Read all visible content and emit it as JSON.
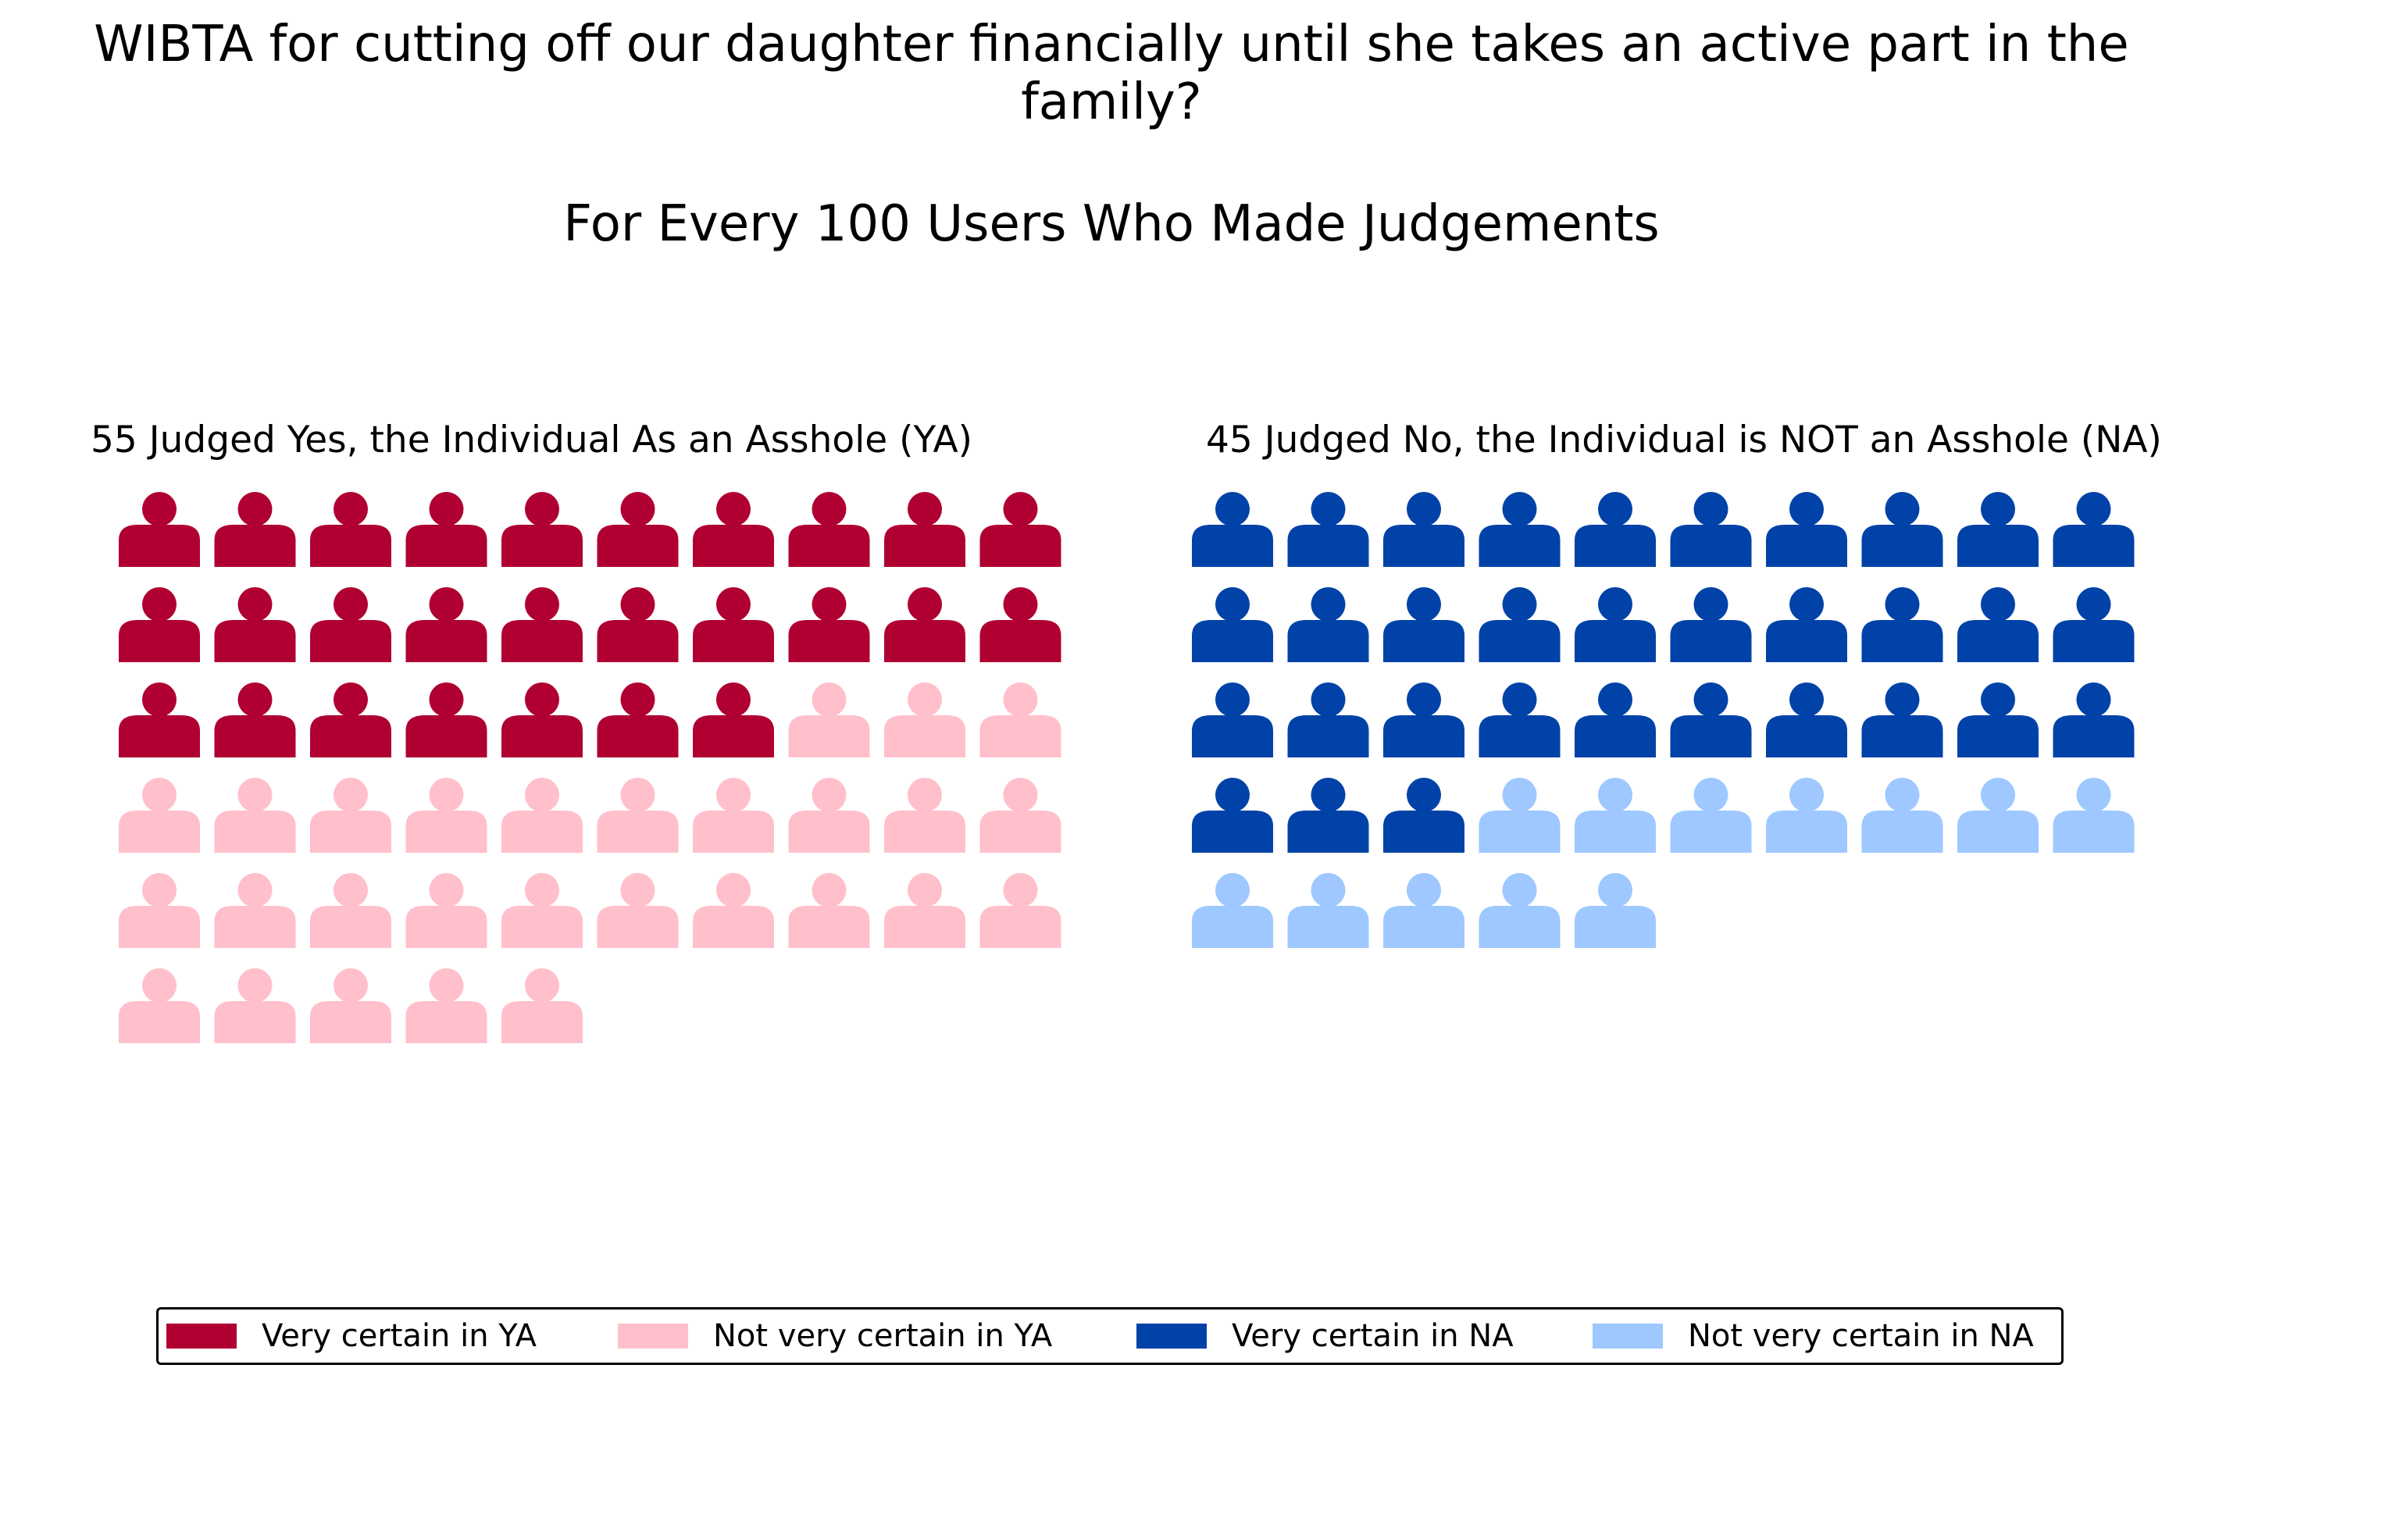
{
  "chart_data": {
    "type": "waffle",
    "title": "WIBTA for cutting off our daughter financially until she takes an active part in the family?",
    "title_lines": [
      "WIBTA for cutting off our daughter financially until she takes an active part in the",
      "family?"
    ],
    "subtitle": "For Every 100 Users Who Made Judgements",
    "columns_per_row": 10,
    "panels": [
      {
        "key": "ya",
        "title": "55 Judged Yes, the Individual As an Asshole (YA)",
        "total": 55,
        "segments": [
          {
            "name": "Very certain in YA",
            "count": 27,
            "color": "#b00032"
          },
          {
            "name": "Not very certain in YA",
            "count": 28,
            "color": "#ffc0cb"
          }
        ]
      },
      {
        "key": "na",
        "title": "45 Judged No, the Individual is NOT an Asshole (NA)",
        "total": 45,
        "segments": [
          {
            "name": "Very certain in NA",
            "count": 33,
            "color": "#0042a8"
          },
          {
            "name": "Not very certain in NA",
            "count": 12,
            "color": "#9ec8ff"
          }
        ]
      }
    ],
    "legend": {
      "placement": "bottom",
      "entries": [
        {
          "label": "Very certain in YA",
          "color": "#b00032"
        },
        {
          "label": "Not very certain in YA",
          "color": "#ffc0cb"
        },
        {
          "label": "Very certain in NA",
          "color": "#0042a8"
        },
        {
          "label": "Not very certain in NA",
          "color": "#9ec8ff"
        }
      ]
    },
    "icon": "person-icon"
  }
}
